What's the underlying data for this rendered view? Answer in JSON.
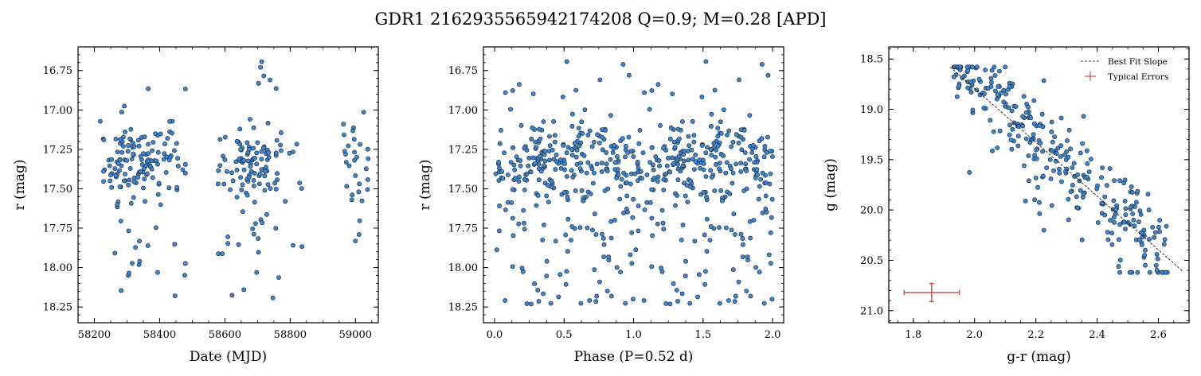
{
  "title": "GDR1 2162935565942174208  Q=0.9; M=0.28 [APD]",
  "colors": {
    "point": "#3a88d8",
    "edge": "#1a1a1a",
    "error": "#cc5050",
    "fit": "#000000"
  },
  "chart_data": [
    {
      "type": "scatter",
      "xlabel": "Date (MJD)",
      "ylabel": "r (mag)",
      "xlim": [
        58150,
        59070
      ],
      "ylim": [
        18.35,
        16.6
      ],
      "y_inverted": true,
      "xticks": [
        58200,
        58400,
        58600,
        58800,
        59000
      ],
      "yticks": [
        16.75,
        17.0,
        17.25,
        17.5,
        17.75,
        18.0,
        18.25
      ],
      "yticklabels": [
        "16.75",
        "17.00",
        "17.25",
        "17.50",
        "17.75",
        "18.00",
        "18.25"
      ],
      "series": [
        {
          "x": [],
          "y": []
        }
      ]
    },
    {
      "type": "scatter",
      "xlabel": "Phase (P=0.52 d)",
      "ylabel": "r (mag)",
      "xlim": [
        -0.08,
        2.08
      ],
      "ylim": [
        18.35,
        16.6
      ],
      "y_inverted": true,
      "xticks": [
        0.0,
        0.5,
        1.0,
        1.5,
        2.0
      ],
      "xticklabels": [
        "0.0",
        "0.5",
        "1.0",
        "1.5",
        "2.0"
      ],
      "yticks": [
        16.75,
        17.0,
        17.25,
        17.5,
        17.75,
        18.0,
        18.25
      ],
      "yticklabels": [
        "16.75",
        "17.00",
        "17.25",
        "17.50",
        "17.75",
        "18.00",
        "18.25"
      ],
      "series": [
        {
          "x": [],
          "y": []
        }
      ]
    },
    {
      "type": "scatter",
      "xlabel": "g-r (mag)",
      "ylabel": "g (mag)",
      "xlim": [
        1.72,
        2.7
      ],
      "ylim": [
        21.12,
        18.38
      ],
      "y_inverted": true,
      "xticks": [
        1.8,
        2.0,
        2.2,
        2.4,
        2.6
      ],
      "xticklabels": [
        "1.8",
        "2.0",
        "2.2",
        "2.4",
        "2.6"
      ],
      "yticks": [
        18.5,
        19.0,
        19.5,
        20.0,
        20.5,
        21.0
      ],
      "yticklabels": [
        "18.5",
        "19.0",
        "19.5",
        "20.0",
        "20.5",
        "21.0"
      ],
      "legend": {
        "position": "upper-right",
        "entries": [
          "Best Fit Slope",
          "Typical Errors"
        ]
      },
      "fit_line": {
        "x": [
          1.92,
          2.68
        ],
        "y": [
          18.58,
          20.61
        ]
      },
      "typical_error": {
        "x": 1.86,
        "y": 20.82,
        "xerr": 0.09,
        "yerr": 0.09
      },
      "series": [
        {
          "x": [],
          "y": []
        }
      ]
    }
  ]
}
